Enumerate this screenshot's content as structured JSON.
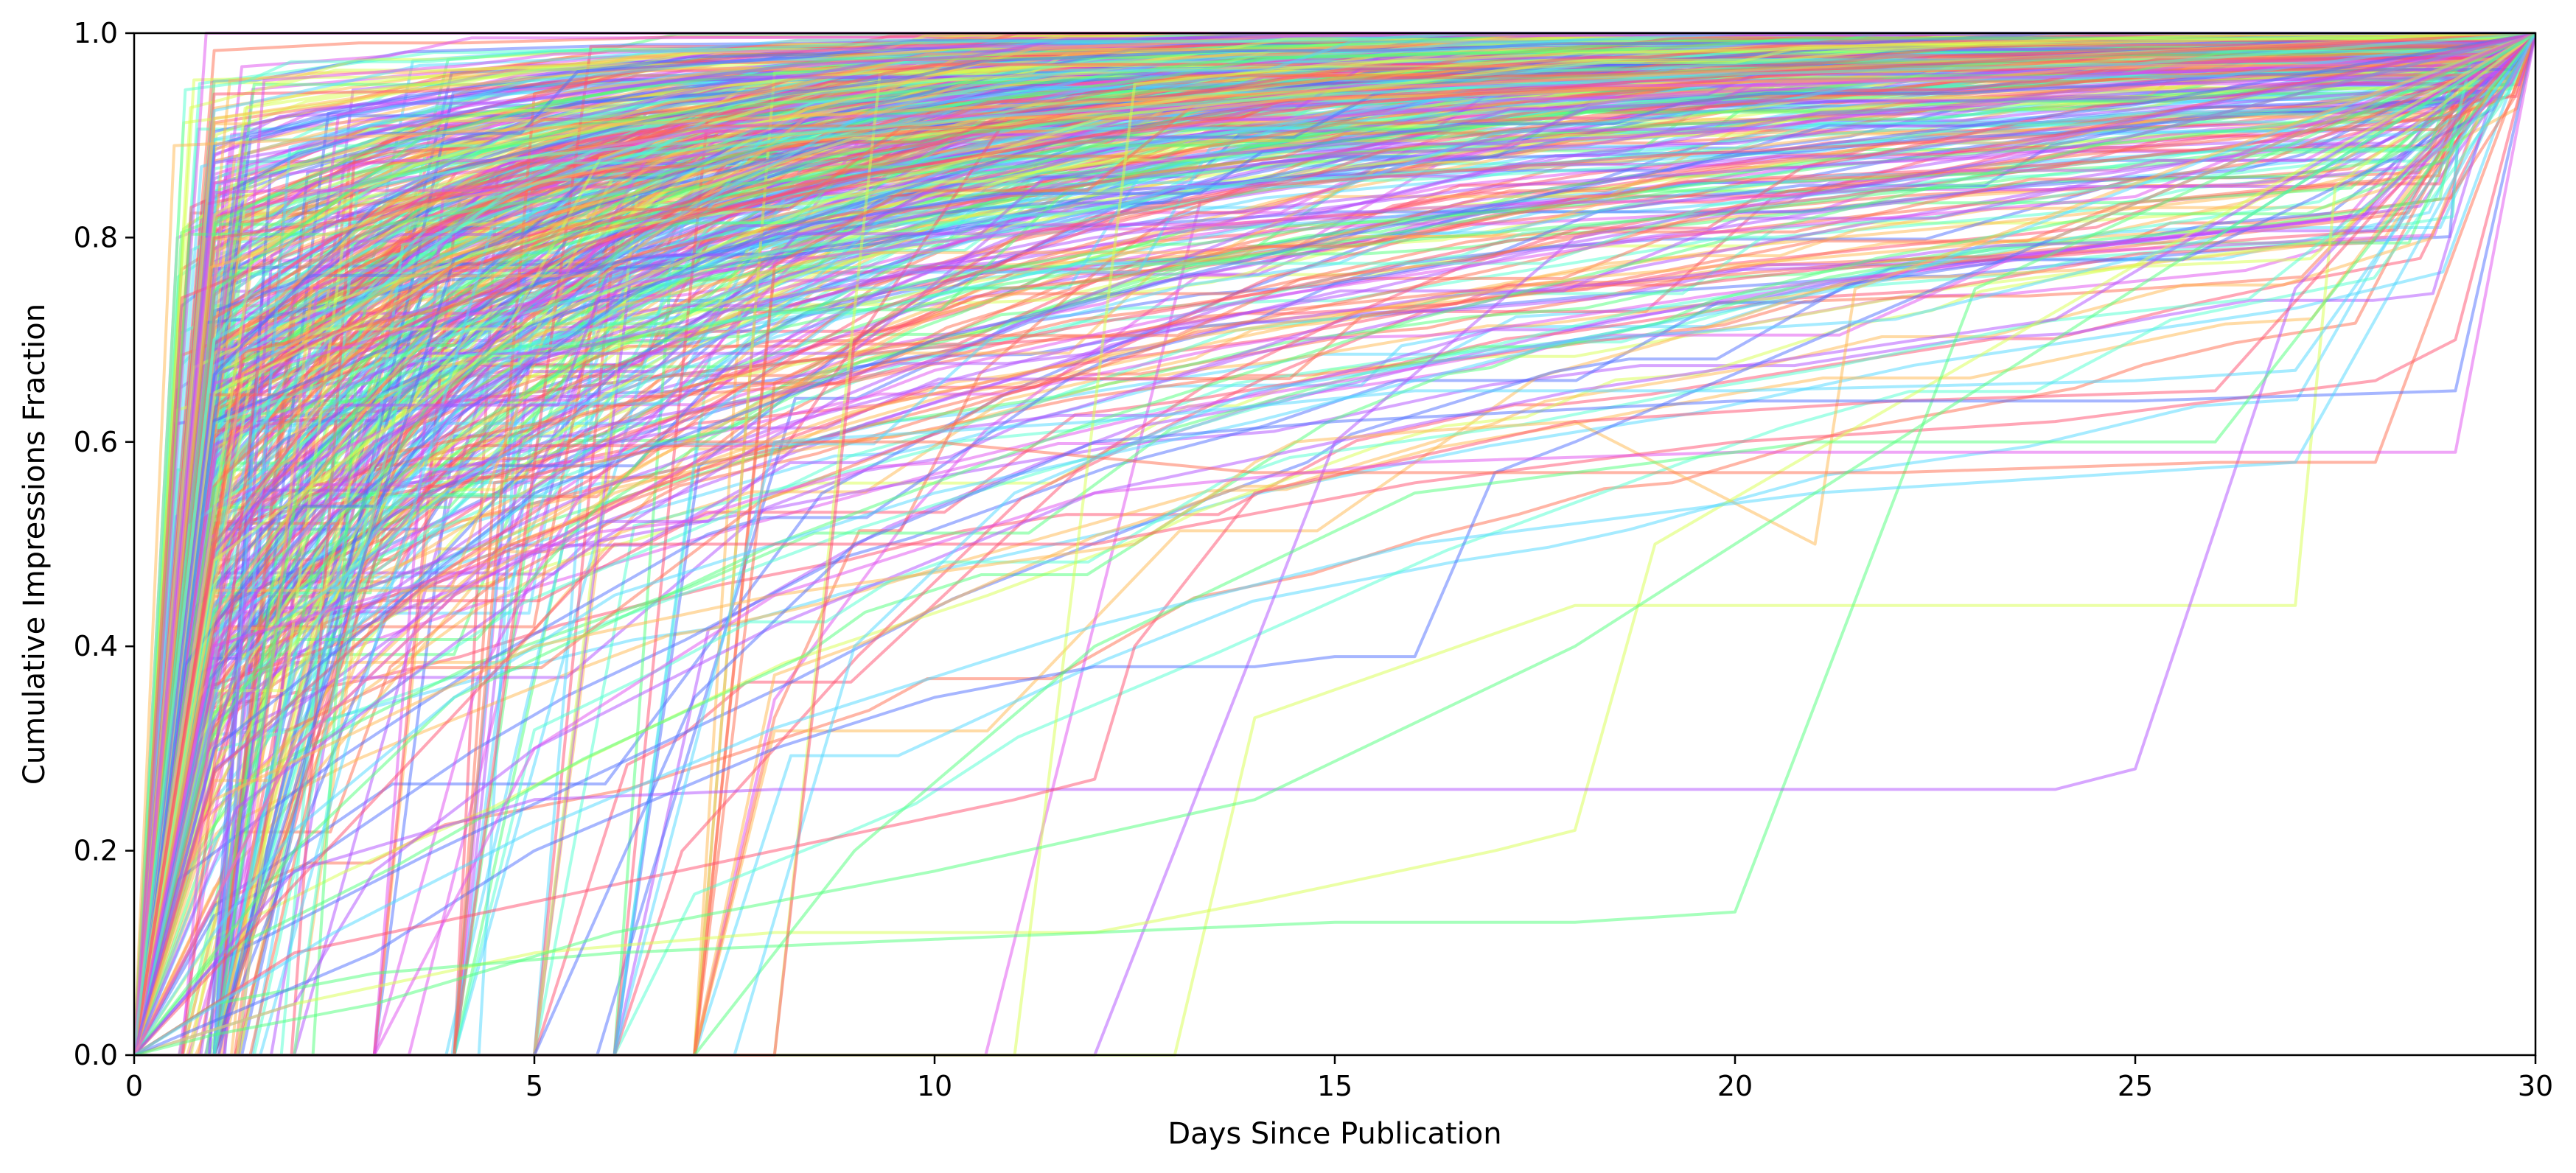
{
  "chart_data": {
    "type": "line",
    "title": "",
    "xlabel": "Days Since Publication",
    "ylabel": "Cumulative Impressions Fraction",
    "xlim": [
      0,
      30
    ],
    "ylim": [
      0,
      1.0
    ],
    "x_ticks": [
      0,
      5,
      10,
      15,
      20,
      25,
      30
    ],
    "y_ticks": [
      0.0,
      0.2,
      0.4,
      0.6,
      0.8,
      1.0
    ],
    "x_tick_labels": [
      "0",
      "5",
      "10",
      "15",
      "20",
      "25",
      "30"
    ],
    "y_tick_labels": [
      "0.0",
      "0.2",
      "0.4",
      "0.6",
      "0.8",
      "1.0"
    ],
    "grid": false,
    "legend": "none",
    "palette": [
      "#ff4d6d",
      "#4d6dff",
      "#4dff7a",
      "#b04dff",
      "#4dd8ff",
      "#ffb84d",
      "#e04df0",
      "#d8ff4d",
      "#ff6b4d",
      "#4dffd0"
    ],
    "series_count_shown": "hundreds (rainbow-colored, semi-transparent)",
    "series": [
      {
        "x": [
          0,
          0.5,
          30
        ],
        "values": [
          0,
          0.89,
          1.0
        ],
        "color": "#ffb84d"
      },
      {
        "x": [
          0,
          1,
          5,
          10,
          15,
          20,
          25,
          30
        ],
        "values": [
          0,
          0.3,
          0.55,
          0.7,
          0.8,
          0.88,
          0.93,
          1.0
        ],
        "color": "#4d6dff"
      },
      {
        "x": [
          0,
          1,
          3,
          6,
          9,
          12,
          15,
          20,
          30
        ],
        "values": [
          0,
          0.5,
          0.7,
          0.8,
          0.86,
          0.9,
          0.93,
          0.96,
          1.0
        ],
        "color": "#ff4d6d"
      },
      {
        "x": [
          0,
          0.9,
          30
        ],
        "values": [
          0,
          1.0,
          1.0
        ],
        "color": "#e04df0"
      },
      {
        "x": [
          0,
          2,
          4,
          8,
          12,
          16,
          20,
          30
        ],
        "values": [
          0,
          0.2,
          0.35,
          0.5,
          0.62,
          0.72,
          0.8,
          1.0
        ],
        "color": "#4dff7a"
      },
      {
        "x": [
          0,
          1,
          2,
          4,
          6,
          10,
          14,
          18,
          22,
          30
        ],
        "values": [
          0,
          0.12,
          0.22,
          0.35,
          0.45,
          0.55,
          0.62,
          0.7,
          0.76,
          1.0
        ],
        "color": "#4dd8ff"
      },
      {
        "x": [
          0,
          2,
          3,
          5,
          8,
          12,
          18,
          24,
          30
        ],
        "values": [
          0,
          0.05,
          0.18,
          0.3,
          0.42,
          0.55,
          0.65,
          0.72,
          1.0
        ],
        "color": "#b04dff"
      },
      {
        "x": [
          0,
          1,
          5,
          8,
          12.5,
          13.5,
          14,
          14.5,
          16,
          18,
          21,
          21.5,
          30
        ],
        "values": [
          0,
          0.25,
          0.4,
          0.45,
          0.5,
          0.55,
          0.58,
          0.6,
          0.61,
          0.62,
          0.5,
          0.75,
          1.0
        ],
        "color": "#ffb84d"
      },
      {
        "x": [
          0,
          6,
          12,
          16,
          20,
          24,
          28,
          29,
          30
        ],
        "values": [
          0,
          0.5,
          0.5,
          0.56,
          0.6,
          0.62,
          0.66,
          0.7,
          1.0
        ],
        "color": "#ff4d6d"
      },
      {
        "x": [
          0,
          11,
          12.5,
          15,
          18,
          30
        ],
        "values": [
          0,
          0,
          0.95,
          0.97,
          0.98,
          1.0
        ],
        "color": "#d8ff4d"
      },
      {
        "x": [
          0,
          12,
          13,
          15,
          18,
          25,
          30
        ],
        "values": [
          0,
          0,
          0.2,
          0.6,
          0.8,
          0.9,
          1.0
        ],
        "color": "#b04dff"
      },
      {
        "x": [
          0,
          13,
          14,
          18,
          23,
          27,
          27.5,
          30
        ],
        "values": [
          0,
          0,
          0.33,
          0.44,
          0.44,
          0.44,
          0.85,
          1.0
        ],
        "color": "#d8ff4d"
      },
      {
        "x": [
          0,
          2,
          5,
          8,
          10,
          12,
          14,
          17,
          18,
          19,
          30
        ],
        "values": [
          0,
          0.05,
          0.1,
          0.12,
          0.12,
          0.12,
          0.15,
          0.2,
          0.22,
          0.5,
          1.0
        ],
        "color": "#d8ff4d"
      },
      {
        "x": [
          0,
          1,
          3,
          6,
          9,
          12,
          15,
          18,
          20,
          23,
          30
        ],
        "values": [
          0,
          0.05,
          0.08,
          0.1,
          0.11,
          0.12,
          0.13,
          0.13,
          0.14,
          0.75,
          1.0
        ],
        "color": "#4dff7a"
      },
      {
        "x": [
          0,
          2,
          5,
          8,
          11,
          14,
          17,
          20,
          24,
          25,
          27,
          30
        ],
        "values": [
          0,
          0.18,
          0.25,
          0.26,
          0.26,
          0.26,
          0.26,
          0.26,
          0.26,
          0.28,
          0.75,
          1.0
        ],
        "color": "#b04dff"
      },
      {
        "x": [
          0,
          3,
          5,
          8,
          10,
          12,
          14,
          15,
          16,
          17,
          18,
          30
        ],
        "values": [
          0,
          0.1,
          0.2,
          0.3,
          0.35,
          0.38,
          0.38,
          0.39,
          0.39,
          0.57,
          0.6,
          1.0
        ],
        "color": "#4d6dff"
      },
      {
        "x": [
          0,
          2,
          5,
          8,
          11,
          12,
          12.5,
          14,
          18,
          22,
          26,
          30
        ],
        "values": [
          0,
          0.1,
          0.15,
          0.2,
          0.25,
          0.27,
          0.4,
          0.55,
          0.62,
          0.64,
          0.65,
          1.0
        ],
        "color": "#ff4d6d"
      },
      {
        "x": [
          0,
          4,
          4.5,
          7,
          10,
          14,
          18,
          22,
          26,
          28,
          30
        ],
        "values": [
          0,
          0,
          0.56,
          0.6,
          0.6,
          0.57,
          0.57,
          0.57,
          0.58,
          0.58,
          1.0
        ],
        "color": "#ff6b4d"
      },
      {
        "x": [
          0,
          5,
          7,
          9,
          12,
          15,
          20,
          25,
          29,
          30
        ],
        "values": [
          0,
          0,
          0.35,
          0.5,
          0.6,
          0.62,
          0.64,
          0.64,
          0.65,
          1.0
        ],
        "color": "#4d6dff"
      },
      {
        "x": [
          0,
          3,
          5,
          8,
          12,
          16,
          20,
          25,
          29,
          30
        ],
        "values": [
          0,
          0,
          0.3,
          0.45,
          0.55,
          0.58,
          0.59,
          0.59,
          0.59,
          1.0
        ],
        "color": "#e04df0"
      },
      {
        "x": [
          0,
          6,
          8,
          12,
          16,
          20,
          25,
          27,
          30
        ],
        "values": [
          0,
          0,
          0.6,
          0.62,
          0.65,
          0.65,
          0.66,
          0.67,
          1.0
        ],
        "color": "#4dd8ff"
      },
      {
        "x": [
          0,
          7,
          9,
          12,
          16,
          21,
          26,
          30
        ],
        "values": [
          0,
          0,
          0.2,
          0.4,
          0.55,
          0.6,
          0.6,
          1.0
        ],
        "color": "#4dff7a"
      },
      {
        "x": [
          0,
          7.5,
          9,
          11,
          14,
          18,
          22,
          26,
          30
        ],
        "values": [
          0,
          0,
          0.4,
          0.55,
          0.65,
          0.7,
          0.72,
          0.8,
          1.0
        ],
        "color": "#4dd8ff"
      },
      {
        "x": [
          0,
          8,
          9,
          11,
          14,
          19,
          24,
          30
        ],
        "values": [
          0,
          0,
          0.7,
          0.8,
          0.85,
          0.88,
          0.9,
          1.0
        ],
        "color": "#ff4d6d"
      },
      {
        "x": [
          0,
          1,
          2,
          3,
          5,
          8,
          11,
          15,
          20,
          25,
          30
        ],
        "values": [
          0,
          0.7,
          0.8,
          0.85,
          0.88,
          0.9,
          0.92,
          0.94,
          0.96,
          0.97,
          1.0
        ],
        "color": "#4dffd0"
      },
      {
        "x": [
          0,
          1.5,
          3,
          5,
          8,
          12,
          17,
          23,
          30
        ],
        "values": [
          0,
          0.45,
          0.6,
          0.68,
          0.74,
          0.8,
          0.85,
          0.88,
          1.0
        ],
        "color": "#b04dff"
      },
      {
        "x": [
          0,
          2,
          4,
          6,
          9,
          13,
          18,
          24,
          30
        ],
        "values": [
          0,
          0.3,
          0.45,
          0.55,
          0.63,
          0.7,
          0.76,
          0.8,
          1.0
        ],
        "color": "#ffb84d"
      },
      {
        "x": [
          0,
          1,
          2,
          4,
          7,
          10,
          14,
          19,
          25,
          30
        ],
        "values": [
          0,
          0.15,
          0.3,
          0.45,
          0.58,
          0.67,
          0.74,
          0.8,
          0.84,
          1.0
        ],
        "color": "#e04df0"
      },
      {
        "x": [
          0,
          2.5,
          5,
          8,
          12,
          16,
          21,
          27,
          30
        ],
        "values": [
          0,
          0.12,
          0.22,
          0.32,
          0.42,
          0.5,
          0.55,
          0.58,
          1.0
        ],
        "color": "#4dd8ff"
      },
      {
        "x": [
          0,
          1,
          3,
          6,
          10,
          14,
          18,
          22,
          26,
          30
        ],
        "values": [
          0,
          0.02,
          0.05,
          0.12,
          0.18,
          0.25,
          0.4,
          0.6,
          0.8,
          1.0
        ],
        "color": "#4dff7a"
      }
    ]
  }
}
